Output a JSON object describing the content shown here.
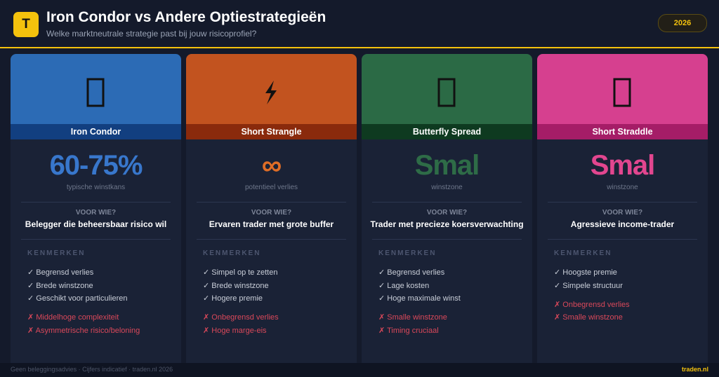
{
  "header": {
    "logo": "T",
    "title": "Iron Condor vs Andere Optiestrategieën",
    "subtitle": "Welke marktneutrale strategie past bij jouw risicoprofiel?",
    "badge": "2026"
  },
  "cards": [
    {
      "name": "Iron Condor",
      "color": "#2c6bb5",
      "band_color": "#123f80",
      "stat_color": "#3877cc",
      "stat": "60-75%",
      "stat_label": "typische winstkans",
      "audience_label": "VOOR WIE?",
      "audience": "Belegger die beheersbaar risico wil",
      "features_label": "KENMERKEN",
      "pros": [
        "✓ Begrensd verlies",
        "✓ Brede winstzone",
        "✓ Geschikt voor particulieren"
      ],
      "cons": [
        "✗ Middelhoge complexiteit",
        "✗ Asymmetrische risico/beloning"
      ]
    },
    {
      "name": "Short Strangle",
      "color": "#c2531f",
      "band_color": "#8a2a0c",
      "stat_color": "#df6d26",
      "stat": "∞",
      "stat_label": "potentieel verlies",
      "audience_label": "VOOR WIE?",
      "audience": "Ervaren trader met grote buffer",
      "features_label": "KENMERKEN",
      "pros": [
        "✓ Simpel op te zetten",
        "✓ Brede winstzone",
        "✓ Hogere premie"
      ],
      "cons": [
        "✗ Onbegrensd verlies",
        "✗ Hoge marge-eis"
      ]
    },
    {
      "name": "Butterfly Spread",
      "color": "#2b6a45",
      "band_color": "#0e3a20",
      "stat_color": "#2e6c47",
      "stat": "Smal",
      "stat_label": "winstzone",
      "audience_label": "VOOR WIE?",
      "audience": "Trader met precieze koersverwachting",
      "features_label": "KENMERKEN",
      "pros": [
        "✓ Begrensd verlies",
        "✓ Lage kosten",
        "✓ Hoge maximale winst"
      ],
      "cons": [
        "✗ Smalle winstzone",
        "✗ Timing cruciaal"
      ]
    },
    {
      "name": "Short Straddle",
      "color": "#d6408f",
      "band_color": "#a51d67",
      "stat_color": "#e2468f",
      "stat": "Smal",
      "stat_label": "winstzone",
      "audience_label": "VOOR WIE?",
      "audience": "Agressieve income-trader",
      "features_label": "KENMERKEN",
      "pros": [
        "✓ Hoogste premie",
        "✓ Simpele structuur"
      ],
      "cons": [
        "✗ Onbegrensd verlies",
        "✗ Smalle winstzone"
      ]
    }
  ],
  "footer": {
    "note": "Geen beleggingsadvies · Cijfers indicatief · traden.nl 2026",
    "brand": "traden.nl"
  }
}
